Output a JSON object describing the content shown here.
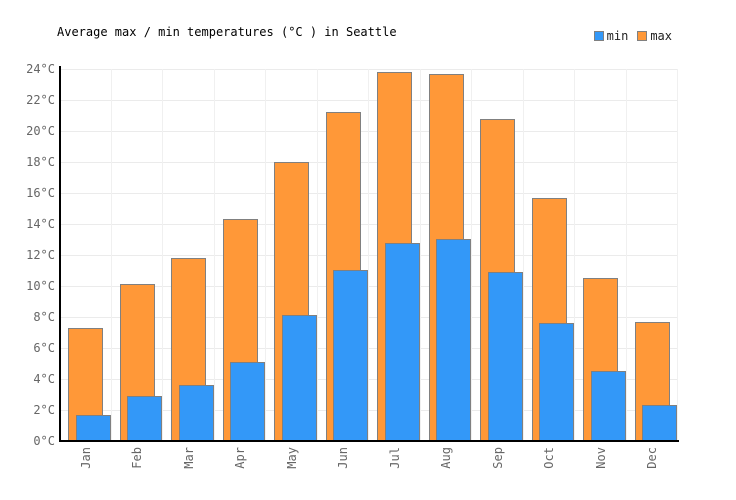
{
  "title": "Average max / min temperatures (°C ) in Seattle",
  "legend": [
    {
      "label": "min",
      "color": "#3398F8"
    },
    {
      "label": "max",
      "color": "#FF9838"
    }
  ],
  "chart_data": {
    "type": "bar",
    "title": "Average max / min temperatures (°C ) in Seattle",
    "categories": [
      "Jan",
      "Feb",
      "Mar",
      "Apr",
      "May",
      "Jun",
      "Jul",
      "Aug",
      "Sep",
      "Oct",
      "Nov",
      "Dec"
    ],
    "series": [
      {
        "name": "max",
        "color": "#FF9838",
        "values": [
          7.3,
          10.1,
          11.8,
          14.3,
          18.0,
          21.2,
          23.8,
          23.7,
          20.8,
          15.7,
          10.5,
          7.7
        ]
      },
      {
        "name": "min",
        "color": "#3398F8",
        "values": [
          1.7,
          2.9,
          3.6,
          5.1,
          8.1,
          11.0,
          12.8,
          13.0,
          10.9,
          7.6,
          4.5,
          2.3
        ]
      }
    ],
    "ylim": [
      0,
      24
    ],
    "ytick_step": 2,
    "ytick_suffix": "°C",
    "grid": true,
    "legend_position": "top-right",
    "bar_border_color": "#808080",
    "axis_color": "#000000",
    "tick_label_color": "#666666"
  }
}
